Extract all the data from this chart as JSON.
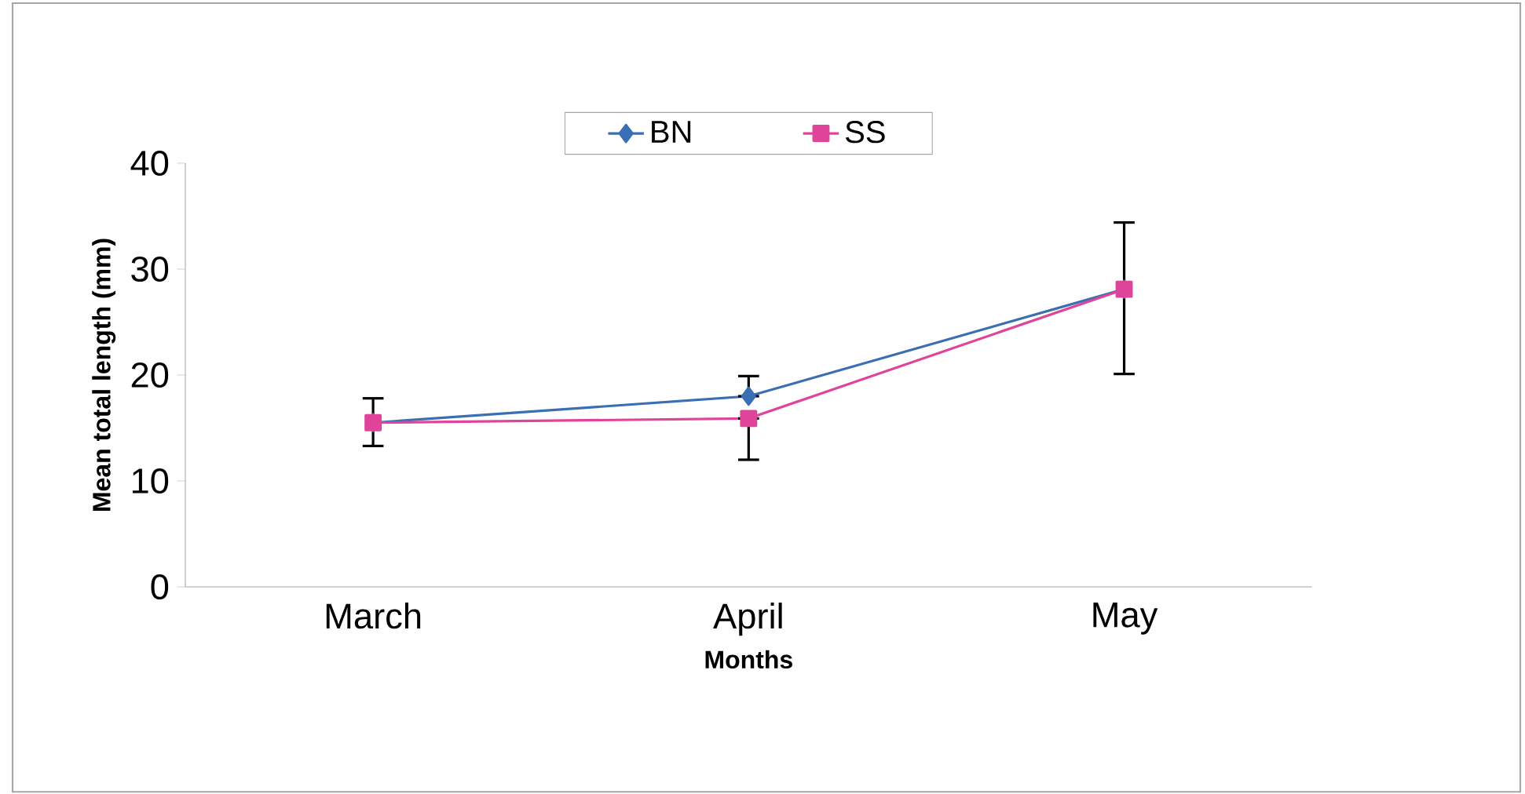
{
  "chart_data": {
    "type": "line",
    "xlabel": "Months",
    "ylabel": "Mean total length (mm)",
    "categories": [
      "March",
      "April",
      "May"
    ],
    "series": [
      {
        "name": "BN",
        "color": "#3a6fb5",
        "marker": "diamond",
        "values": [
          15.5,
          18.0,
          28.1
        ],
        "errors": [
          [
            13.3,
            17.8
          ],
          [
            18.0,
            19.9
          ],
          null
        ]
      },
      {
        "name": "SS",
        "color": "#e0449a",
        "marker": "square",
        "values": [
          15.5,
          15.9,
          28.1
        ],
        "errors": [
          null,
          [
            12.0,
            15.9
          ],
          [
            20.1,
            34.4
          ]
        ]
      }
    ],
    "ylim": [
      0,
      40
    ],
    "yticks": [
      0,
      10,
      20,
      30,
      40
    ],
    "legend": "top",
    "grid": false
  }
}
